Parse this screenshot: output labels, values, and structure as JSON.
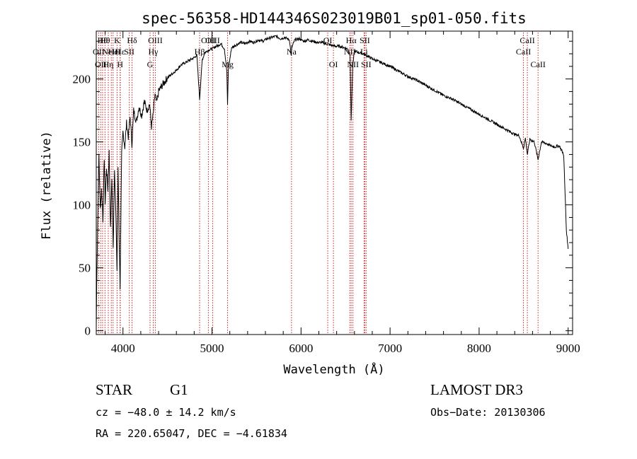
{
  "chart_data": {
    "type": "line",
    "title": "spec-56358-HD144346S023019B01_sp01-050.fits",
    "xlabel": "Wavelength (Å)",
    "ylabel": "Flux (relative)",
    "xlim": [
      3700,
      9050
    ],
    "ylim": [
      -3,
      238
    ],
    "xticks": [
      4000,
      5000,
      6000,
      7000,
      8000,
      9000
    ],
    "xtick_labels": [
      "4000",
      "5000",
      "6000",
      "7000",
      "8000",
      "9000"
    ],
    "yticks": [
      0,
      50,
      100,
      150,
      200
    ],
    "ytick_labels": [
      "0",
      "50",
      "100",
      "150",
      "200"
    ],
    "x_minor_step": 200,
    "y_minor_step": 10,
    "series": [
      {
        "name": "flux",
        "x": [
          3700,
          3705,
          3715,
          3730,
          3745,
          3760,
          3775,
          3790,
          3800,
          3815,
          3830,
          3845,
          3860,
          3875,
          3890,
          3905,
          3920,
          3933,
          3945,
          3960,
          3968,
          3985,
          4000,
          4020,
          4040,
          4060,
          4080,
          4101,
          4120,
          4150,
          4180,
          4210,
          4240,
          4270,
          4300,
          4320,
          4340,
          4360,
          4380,
          4400,
          4450,
          4500,
          4550,
          4600,
          4650,
          4700,
          4750,
          4800,
          4830,
          4861,
          4890,
          4920,
          4960,
          5000,
          5050,
          5100,
          5140,
          5167,
          5175,
          5184,
          5220,
          5270,
          5320,
          5370,
          5420,
          5470,
          5520,
          5570,
          5620,
          5670,
          5720,
          5770,
          5820,
          5870,
          5890,
          5896,
          5930,
          5980,
          6030,
          6080,
          6130,
          6180,
          6230,
          6280,
          6330,
          6380,
          6430,
          6480,
          6520,
          6550,
          6563,
          6580,
          6600,
          6650,
          6700,
          6750,
          6800,
          6900,
          7000,
          7100,
          7200,
          7300,
          7400,
          7500,
          7600,
          7700,
          7800,
          7900,
          8000,
          8100,
          8200,
          8300,
          8400,
          8450,
          8498,
          8520,
          8542,
          8570,
          8620,
          8662,
          8700,
          8750,
          8800,
          8850,
          8900,
          8950,
          8980,
          9000
        ],
        "y": [
          2,
          35,
          82,
          140,
          97,
          112,
          88,
          138,
          102,
          130,
          112,
          142,
          80,
          122,
          65,
          130,
          92,
          48,
          128,
          62,
          35,
          140,
          158,
          146,
          165,
          154,
          170,
          148,
          175,
          166,
          178,
          171,
          182,
          175,
          180,
          162,
          172,
          188,
          181,
          190,
          196,
          201,
          204,
          207,
          211,
          213,
          215,
          217,
          219,
          184,
          215,
          221,
          223,
          224,
          226,
          228,
          224,
          205,
          180,
          208,
          225,
          227,
          229,
          228,
          230,
          229,
          231,
          230,
          232,
          233,
          234,
          232,
          233,
          231,
          218,
          225,
          231,
          232,
          230,
          231,
          230,
          229,
          229,
          228,
          227,
          226,
          226,
          225,
          224,
          220,
          167,
          210,
          222,
          221,
          220,
          218,
          216,
          213,
          210,
          206,
          202,
          199,
          195,
          191,
          187,
          184,
          180,
          176,
          172,
          168,
          164,
          160,
          156,
          155,
          145,
          153,
          140,
          152,
          150,
          136,
          150,
          149,
          147,
          146,
          147,
          140,
          80,
          65
        ]
      }
    ],
    "spectral_lines": [
      {
        "wavelength": 3727,
        "label": "OII",
        "row": 2
      },
      {
        "wavelength": 3750,
        "label": "OII",
        "row": 3
      },
      {
        "wavelength": 3771,
        "label": "Hθ",
        "row": 1
      },
      {
        "wavelength": 3798,
        "label": "Hθ",
        "row": 1
      },
      {
        "wavelength": 3835,
        "label": "Hη",
        "row": 3
      },
      {
        "wavelength": 3869,
        "label": "NeIII",
        "row": 2
      },
      {
        "wavelength": 3889,
        "label": "He",
        "row": 2
      },
      {
        "wavelength": 3934,
        "label": "K",
        "row": 1
      },
      {
        "wavelength": 3968,
        "label": "H",
        "row": 3
      },
      {
        "wavelength": 3970,
        "label": "Hε",
        "row": 2
      },
      {
        "wavelength": 4071,
        "label": "SII",
        "row": 2
      },
      {
        "wavelength": 4102,
        "label": "Hδ",
        "row": 1
      },
      {
        "wavelength": 4304,
        "label": "G",
        "row": 3
      },
      {
        "wavelength": 4340,
        "label": "Hγ",
        "row": 2
      },
      {
        "wavelength": 4363,
        "label": "OIII",
        "row": 1
      },
      {
        "wavelength": 4861,
        "label": "Hβ",
        "row": 2
      },
      {
        "wavelength": 4959,
        "label": "OIII",
        "row": 1
      },
      {
        "wavelength": 5007,
        "label": "OIII",
        "row": 1
      },
      {
        "wavelength": 5175,
        "label": "Mg",
        "row": 3
      },
      {
        "wavelength": 5893,
        "label": "Na",
        "row": 2
      },
      {
        "wavelength": 6300,
        "label": "OI",
        "row": 1
      },
      {
        "wavelength": 6364,
        "label": "OI",
        "row": 3
      },
      {
        "wavelength": 6548,
        "label": "NII",
        "row": 2
      },
      {
        "wavelength": 6563,
        "label": "Hα",
        "row": 1
      },
      {
        "wavelength": 6583,
        "label": "NII",
        "row": 3
      },
      {
        "wavelength": 6708,
        "label": "Li",
        "row": 2
      },
      {
        "wavelength": 6716,
        "label": "SII",
        "row": 1
      },
      {
        "wavelength": 6731,
        "label": "SII",
        "row": 3
      },
      {
        "wavelength": 8498,
        "label": "CaII",
        "row": 2
      },
      {
        "wavelength": 8542,
        "label": "CaII",
        "row": 1
      },
      {
        "wavelength": 8662,
        "label": "CaII",
        "row": 3
      }
    ]
  },
  "info": {
    "object_class": "STAR",
    "subclass": "G1",
    "survey": "LAMOST DR3",
    "redshift_text": "cz = −48.0 ± 14.2 km/s",
    "obs_date_text": "Obs−Date: 20130306",
    "coords_text": "RA = 220.65047, DEC =  −4.61834"
  },
  "colors": {
    "spectrum": "#000000",
    "line_markers": "#cc2222",
    "axes": "#000000"
  }
}
